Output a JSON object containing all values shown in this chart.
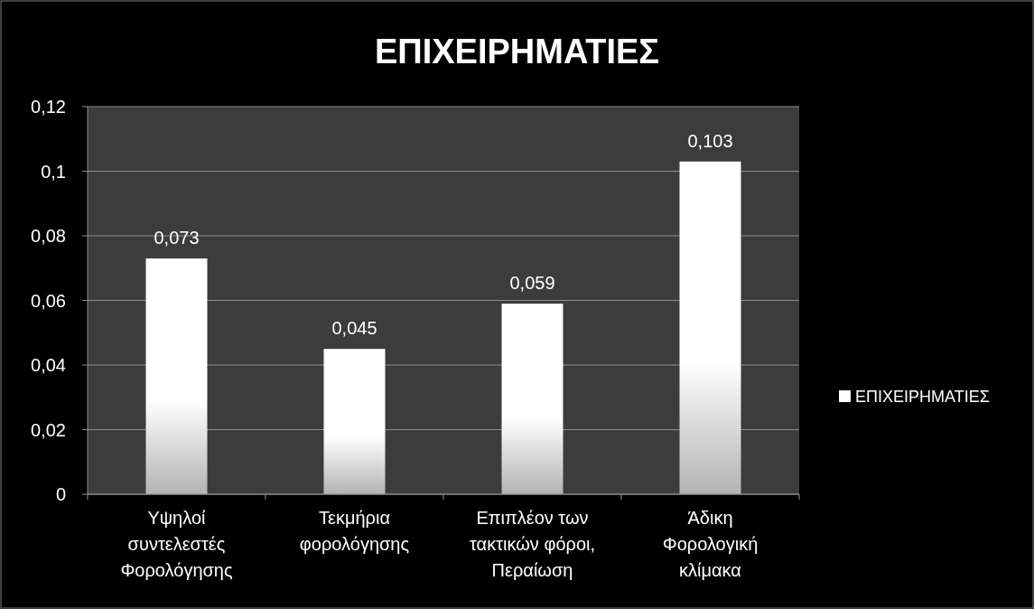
{
  "chart_data": {
    "type": "bar",
    "title": "ΕΠΙΧΕΙΡΗΜΑΤΙΕΣ",
    "categories": [
      "Υψηλοί συντελεστές Φορολόγησης",
      "Τεκμήρια φορολόγησης",
      "Επιπλέον των τακτικών φόροι, Περαίωση",
      "Άδικη Φορολογική κλίμακα"
    ],
    "series": [
      {
        "name": "ΕΠΙΧΕΙΡΗΜΑΤΙΕΣ",
        "color": "#ffffff",
        "values": [
          0.073,
          0.045,
          0.059,
          0.103
        ],
        "value_labels": [
          "0,073",
          "0,045",
          "0,059",
          "0,103"
        ]
      }
    ],
    "ylim": [
      0,
      0.12
    ],
    "yticks": [
      {
        "value": 0,
        "label": "0"
      },
      {
        "value": 0.02,
        "label": "0,02"
      },
      {
        "value": 0.04,
        "label": "0,04"
      },
      {
        "value": 0.06,
        "label": "0,06"
      },
      {
        "value": 0.08,
        "label": "0,08"
      },
      {
        "value": 0.1,
        "label": "0,1"
      },
      {
        "value": 0.12,
        "label": "0,12"
      }
    ],
    "grid": "y",
    "legend": "right"
  }
}
